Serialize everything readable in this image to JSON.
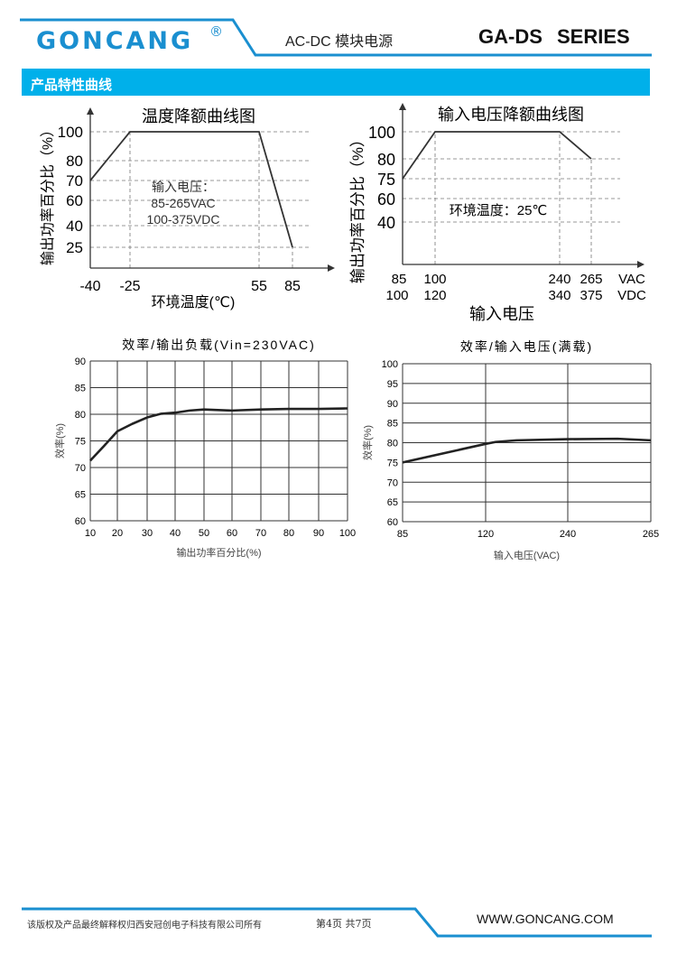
{
  "header": {
    "brand": "GONCANG",
    "registered_mark": "®",
    "subtitle": "AC-DC 模块电源",
    "series": "GA-DS SERIES",
    "accent_color": "#1a8fd0"
  },
  "section": {
    "title": "产品特性曲线",
    "color": "#00b0ea"
  },
  "footer": {
    "copyright": "该版权及产品最终解释权归西安冠创电子科技有限公司所有",
    "page": "第4页 共7页",
    "website": "WWW.GONCANG.COM"
  },
  "chart_data": [
    {
      "type": "line",
      "title": "温度降额曲线图",
      "xlabel": "环境温度(℃)",
      "ylabel": "输出功率百分比（%）",
      "x_ticks": [
        "-40",
        "-25",
        "55",
        "85"
      ],
      "y_ticks": [
        "100",
        "80",
        "70",
        "60",
        "40",
        "25"
      ],
      "grid": "dashed",
      "annotation": [
        "输入电压：",
        "85-265VAC",
        "100-375VDC"
      ],
      "series": [
        {
          "x": [
            -40,
            -25,
            55,
            85
          ],
          "y": [
            70,
            100,
            100,
            25
          ]
        }
      ]
    },
    {
      "type": "line",
      "title": "输入电压降额曲线图",
      "xlabel": "输入电压",
      "ylabel": "输出功率百分比（%）",
      "x_ticks": [
        "85",
        "100",
        "240",
        "265"
      ],
      "x_ticks_dc": [
        "100",
        "120",
        "340",
        "375"
      ],
      "x_unit_labels": [
        "VAC",
        "VDC"
      ],
      "y_ticks": [
        "100",
        "80",
        "75",
        "60",
        "40"
      ],
      "grid": "dashed",
      "annotation": [
        "环境温度：25℃"
      ],
      "series": [
        {
          "x": [
            85,
            100,
            240,
            265
          ],
          "y": [
            75,
            100,
            100,
            80
          ]
        }
      ]
    },
    {
      "type": "line",
      "title": "效率/输出负载(Vin=230VAC)",
      "xlabel": "输出功率百分比(%)",
      "ylabel": "效率(%)",
      "x_ticks": [
        "10",
        "20",
        "30",
        "40",
        "50",
        "60",
        "70",
        "80",
        "90",
        "100"
      ],
      "y_ticks": [
        "90",
        "85",
        "80",
        "75",
        "70",
        "65",
        "60"
      ],
      "xlim": [
        10,
        100
      ],
      "ylim": [
        60,
        90
      ],
      "grid": "solid",
      "series": [
        {
          "x": [
            10,
            15,
            20,
            25,
            30,
            35,
            40,
            45,
            50,
            55,
            60,
            70,
            80,
            90,
            100
          ],
          "y": [
            71.3,
            74,
            76.8,
            78.2,
            79.4,
            80.1,
            80.3,
            80.7,
            80.9,
            80.8,
            80.7,
            80.9,
            81,
            81,
            81.1
          ]
        }
      ]
    },
    {
      "type": "line",
      "title": "效率/输入电压(满载)",
      "xlabel": "输入电压(VAC)",
      "ylabel": "效率(%)",
      "x_ticks": [
        "85",
        "120",
        "240",
        "265"
      ],
      "y_ticks": [
        "100",
        "95",
        "90",
        "85",
        "80",
        "75",
        "70",
        "65",
        "60"
      ],
      "ylim": [
        60,
        100
      ],
      "grid": "solid",
      "series": [
        {
          "x": [
            85,
            120,
            135,
            165,
            240,
            255,
            265
          ],
          "y": [
            75,
            79.7,
            80.2,
            80.6,
            80.9,
            81,
            80.6
          ]
        }
      ]
    }
  ]
}
